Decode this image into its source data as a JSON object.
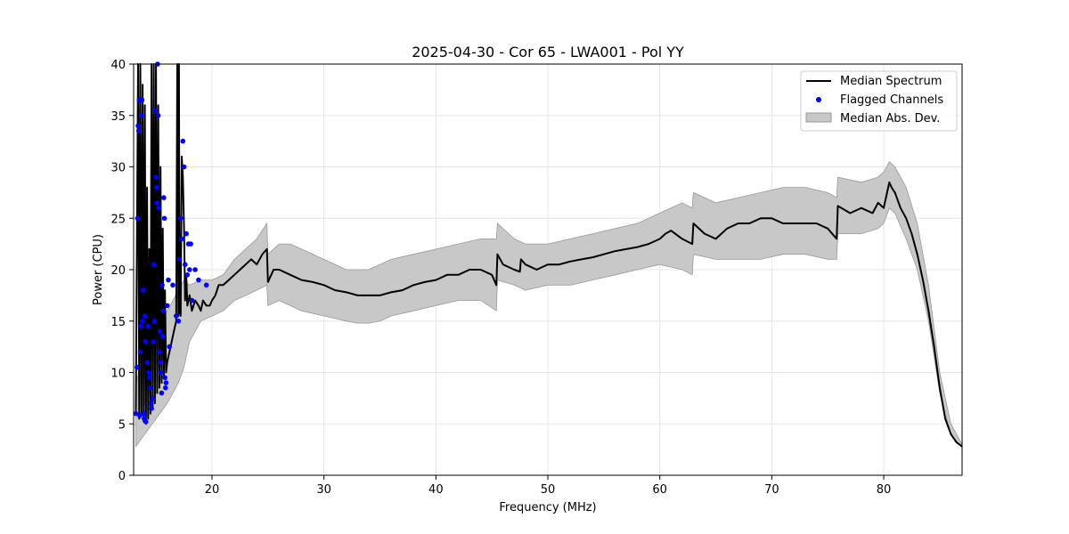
{
  "chart_data": {
    "type": "line",
    "title": "2025-04-30 - Cor 65 - LWA001 - Pol YY",
    "xlabel": "Frequency (MHz)",
    "ylabel": "Power (CPU)",
    "xlim": [
      13,
      87
    ],
    "ylim": [
      0,
      40
    ],
    "xticks": [
      20,
      30,
      40,
      50,
      60,
      70,
      80
    ],
    "yticks": [
      0,
      5,
      10,
      15,
      20,
      25,
      30,
      35,
      40
    ],
    "grid": true,
    "legend": {
      "position": "top-right",
      "entries": [
        "Median Spectrum",
        "Flagged Channels",
        "Median Abs. Dev."
      ]
    },
    "colors": {
      "median": "#000000",
      "flagged": "#0000ff",
      "mad_fill": "#c8c8c8",
      "mad_edge": "#999999"
    },
    "series": [
      {
        "name": "Median Spectrum",
        "x": [
          13.2,
          13.4,
          13.5,
          13.6,
          13.7,
          13.8,
          13.9,
          14.0,
          14.1,
          14.2,
          14.3,
          14.4,
          14.5,
          14.6,
          14.7,
          14.8,
          14.9,
          15.0,
          15.1,
          15.2,
          15.3,
          15.4,
          15.5,
          15.6,
          15.7,
          15.8,
          15.9,
          16.0,
          16.2,
          16.4,
          16.6,
          16.8,
          16.9,
          17.0,
          17.05,
          17.1,
          17.2,
          17.3,
          17.4,
          17.5,
          17.6,
          17.7,
          17.8,
          18.0,
          18.2,
          18.5,
          18.8,
          19.0,
          19.2,
          19.5,
          19.8,
          20.0,
          20.3,
          20.6,
          21.0,
          21.5,
          22.0,
          22.5,
          23.0,
          23.5,
          24.0,
          24.5,
          24.9,
          25.0,
          25.5,
          26.0,
          27.0,
          28.0,
          29.0,
          30.0,
          31.0,
          32.0,
          33.0,
          34.0,
          35.0,
          36.0,
          37.0,
          38.0,
          39.0,
          40.0,
          41.0,
          42.0,
          43.0,
          44.0,
          45.0,
          45.4,
          45.5,
          46.0,
          47.0,
          47.5,
          47.6,
          48.0,
          49.0,
          50.0,
          51.0,
          52.0,
          53.0,
          54.0,
          55.0,
          56.0,
          57.0,
          58.0,
          59.0,
          60.0,
          60.5,
          61.0,
          62.0,
          62.9,
          63.0,
          64.0,
          65.0,
          66.0,
          67.0,
          68.0,
          69.0,
          70.0,
          71.0,
          72.0,
          73.0,
          74.0,
          75.0,
          75.8,
          75.9,
          77.0,
          78.0,
          79.0,
          79.5,
          80.0,
          80.5,
          80.7,
          81.0,
          81.5,
          82.0,
          82.5,
          83.0,
          83.5,
          84.0,
          84.5,
          85.0,
          85.5,
          86.0,
          86.5,
          87.0
        ],
        "y": [
          6.0,
          40.0,
          5.5,
          40.0,
          6.0,
          38.0,
          5.2,
          36.0,
          5.0,
          28.0,
          5.5,
          22.0,
          6.0,
          40.0,
          6.5,
          40.0,
          7.0,
          40.0,
          8.0,
          36.0,
          8.5,
          30.0,
          9.0,
          24.0,
          9.5,
          18.0,
          10.0,
          11.0,
          12.0,
          13.0,
          14.0,
          15.0,
          40.0,
          15.5,
          40.0,
          16.0,
          15.5,
          31.0,
          29.0,
          24.0,
          17.0,
          19.5,
          16.5,
          17.5,
          16.0,
          17.0,
          16.5,
          16.0,
          17.0,
          16.5,
          16.5,
          17.0,
          17.5,
          18.5,
          18.5,
          19.0,
          19.5,
          20.0,
          20.5,
          21.0,
          20.5,
          21.5,
          22.0,
          18.8,
          20.0,
          20.0,
          19.5,
          19.0,
          18.8,
          18.5,
          18.0,
          17.8,
          17.5,
          17.5,
          17.5,
          17.8,
          18.0,
          18.5,
          18.8,
          19.0,
          19.5,
          19.5,
          20.0,
          20.0,
          19.5,
          18.5,
          21.5,
          20.5,
          20.0,
          19.8,
          21.0,
          20.5,
          20.0,
          20.5,
          20.5,
          20.8,
          21.0,
          21.2,
          21.5,
          21.8,
          22.0,
          22.2,
          22.5,
          23.0,
          23.5,
          23.8,
          23.0,
          22.5,
          24.5,
          23.5,
          23.0,
          24.0,
          24.5,
          24.5,
          25.0,
          25.0,
          24.5,
          24.5,
          24.5,
          24.5,
          24.0,
          23.0,
          26.2,
          25.5,
          26.0,
          25.5,
          26.5,
          26.0,
          28.5,
          28.0,
          27.5,
          26.0,
          25.0,
          23.5,
          21.5,
          19.0,
          16.0,
          12.5,
          8.5,
          5.5,
          4.0,
          3.2,
          2.8
        ],
        "style": "solid-line"
      },
      {
        "name": "Flagged Channels",
        "x": [
          13.2,
          13.3,
          13.35,
          13.4,
          13.45,
          13.5,
          13.55,
          13.6,
          13.65,
          13.7,
          13.75,
          13.8,
          13.85,
          13.9,
          13.95,
          14.0,
          14.05,
          14.1,
          14.2,
          14.3,
          14.35,
          14.4,
          14.5,
          14.55,
          14.6,
          14.7,
          14.75,
          14.8,
          14.85,
          14.9,
          15.0,
          15.05,
          15.1,
          15.15,
          15.2,
          15.25,
          15.3,
          15.35,
          15.4,
          15.45,
          15.5,
          15.55,
          15.6,
          15.65,
          15.7,
          15.75,
          15.8,
          15.85,
          15.9,
          16.0,
          16.1,
          16.2,
          16.5,
          16.8,
          17.0,
          17.1,
          17.2,
          17.3,
          17.4,
          17.5,
          17.6,
          17.7,
          17.8,
          17.9,
          18.0,
          18.1,
          18.2,
          18.5,
          18.8,
          19.5
        ],
        "y": [
          6.0,
          10.5,
          25.0,
          34.0,
          33.5,
          36.5,
          5.8,
          12.0,
          14.5,
          35.0,
          36.5,
          15.0,
          18.0,
          6.0,
          5.5,
          15.5,
          13.0,
          5.2,
          11.0,
          14.5,
          10.0,
          9.5,
          8.5,
          7.0,
          6.5,
          7.5,
          13.0,
          20.5,
          15.0,
          35.5,
          29.0,
          28.0,
          26.5,
          40.0,
          35.0,
          26.0,
          12.0,
          14.0,
          11.0,
          10.0,
          8.0,
          18.5,
          13.5,
          16.0,
          27.0,
          25.0,
          9.5,
          8.5,
          9.0,
          16.5,
          19.0,
          12.5,
          18.5,
          15.5,
          15.0,
          21.0,
          25.0,
          23.0,
          32.5,
          30.0,
          20.5,
          23.5,
          19.5,
          22.5,
          20.0,
          22.5,
          17.0,
          20.0,
          19.0,
          18.5
        ],
        "style": "markers"
      },
      {
        "name": "Median Abs. Dev.",
        "x": [
          13.2,
          14.0,
          15.0,
          16.0,
          17.0,
          17.5,
          18.0,
          19.0,
          20.0,
          21.0,
          22.0,
          23.0,
          24.0,
          24.9,
          25.0,
          26.0,
          27.0,
          28.0,
          30.0,
          32.0,
          33.0,
          34.0,
          35.0,
          36.0,
          38.0,
          40.0,
          42.0,
          44.0,
          45.4,
          45.5,
          47.0,
          48.0,
          50.0,
          52.0,
          54.0,
          56.0,
          58.0,
          60.0,
          62.0,
          62.9,
          63.0,
          65.0,
          67.0,
          69.0,
          71.0,
          73.0,
          75.0,
          75.8,
          75.9,
          78.0,
          79.5,
          80.0,
          80.5,
          81.0,
          82.0,
          83.0,
          84.0,
          85.0,
          86.0,
          87.0
        ],
        "lower": [
          2.8,
          4.0,
          5.5,
          7.0,
          9.0,
          10.5,
          13.0,
          15.0,
          15.5,
          16.0,
          17.0,
          17.5,
          18.0,
          18.5,
          16.5,
          17.0,
          16.5,
          16.0,
          15.5,
          15.0,
          14.8,
          14.8,
          15.0,
          15.5,
          16.0,
          16.5,
          17.0,
          17.0,
          16.0,
          19.0,
          18.5,
          18.0,
          18.5,
          18.5,
          19.0,
          19.5,
          20.0,
          20.5,
          20.0,
          19.5,
          21.5,
          21.0,
          21.0,
          21.0,
          21.5,
          21.5,
          21.0,
          21.0,
          23.5,
          23.5,
          24.0,
          24.5,
          26.0,
          25.5,
          23.0,
          20.0,
          15.0,
          8.0,
          4.0,
          2.7
        ],
        "upper": [
          9.0,
          12.0,
          14.0,
          16.0,
          18.0,
          19.0,
          18.5,
          19.0,
          19.0,
          19.5,
          21.0,
          22.0,
          23.0,
          24.5,
          21.5,
          22.5,
          22.5,
          22.0,
          21.0,
          20.0,
          20.0,
          20.0,
          20.5,
          21.0,
          21.5,
          22.0,
          22.5,
          23.0,
          23.0,
          24.5,
          23.0,
          22.5,
          22.5,
          23.0,
          23.5,
          24.0,
          24.5,
          25.5,
          26.5,
          26.0,
          27.5,
          26.5,
          27.0,
          27.5,
          28.0,
          28.0,
          27.5,
          27.0,
          29.0,
          28.5,
          29.0,
          29.5,
          30.5,
          30.0,
          28.0,
          24.5,
          18.5,
          10.0,
          5.0,
          3.0
        ],
        "style": "shaded-band"
      }
    ]
  }
}
